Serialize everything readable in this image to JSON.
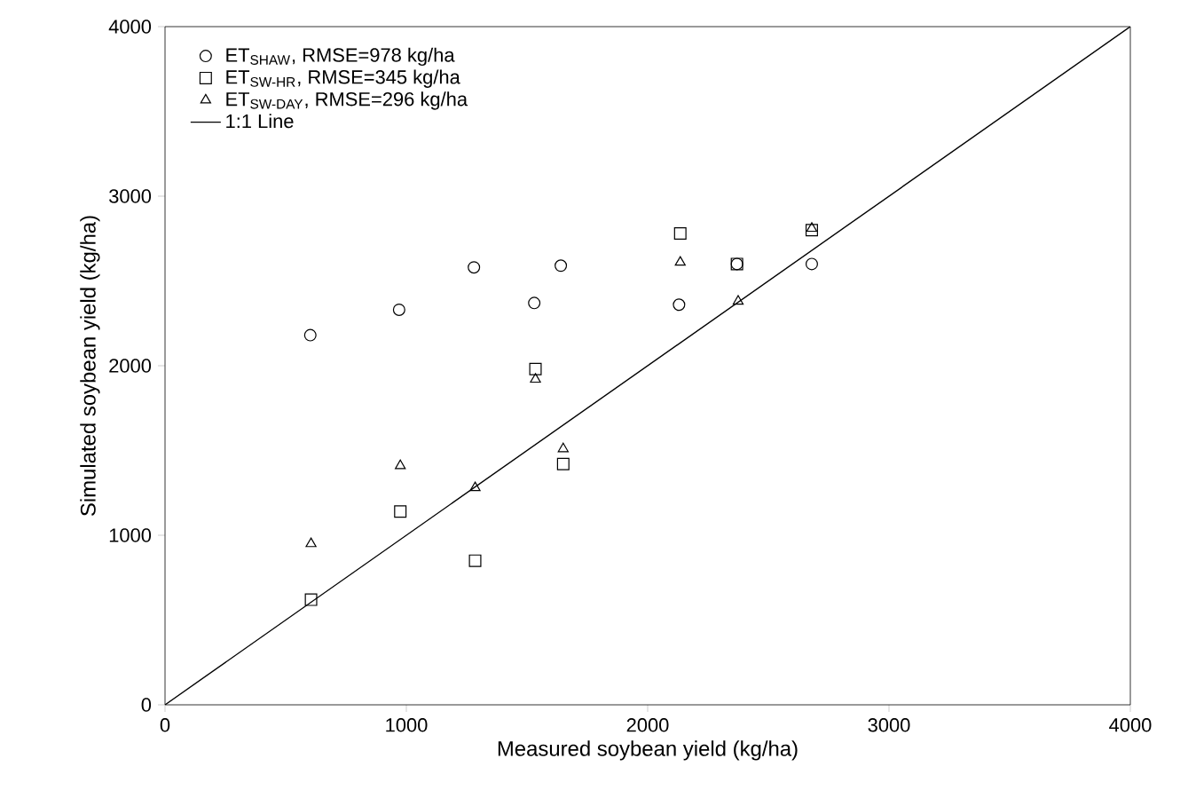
{
  "chart_data": {
    "type": "scatter",
    "xlabel": "Measured soybean yield (kg/ha)",
    "ylabel": "Simulated soybean yield (kg/ha)",
    "xlim": [
      0,
      4000
    ],
    "ylim": [
      0,
      4000
    ],
    "xticks": [
      0,
      1000,
      2000,
      3000,
      4000
    ],
    "yticks": [
      0,
      1000,
      2000,
      3000,
      4000
    ],
    "grid": false,
    "legend": "top left",
    "series": [
      {
        "name": "ET$_{SHAW}$, RMSE=978 kg/ha",
        "color": "#000000",
        "marker": "circle",
        "x": [
          602,
          970,
          1280,
          1530,
          1640,
          2130,
          2370,
          2680
        ],
        "values": [
          2180,
          2330,
          2580,
          2370,
          2590,
          2360,
          2600,
          2600
        ]
      },
      {
        "name": "ET$_{SW-HR}$, RMSE=345 kg/ha",
        "color": "#000000",
        "marker": "square",
        "x": [
          605,
          975,
          1285,
          1535,
          1650,
          2135,
          2370,
          2680
        ],
        "values": [
          620,
          1140,
          850,
          1980,
          1420,
          2780,
          2600,
          2800
        ]
      },
      {
        "name": "ET$_{SW-DAY}$, RMSE=296 kg/ha",
        "color": "#000000",
        "marker": "triangle",
        "x": [
          605,
          975,
          1285,
          1535,
          1650,
          2135,
          2375,
          2680
        ],
        "values": [
          950,
          1410,
          1280,
          1920,
          1510,
          2610,
          2380,
          2810
        ]
      },
      {
        "name": "1:1 Line",
        "color": "#000000",
        "type": "line",
        "marker": "none",
        "line_style": "solid",
        "x": [
          0,
          4000
        ],
        "values": [
          0,
          4000
        ]
      }
    ]
  }
}
